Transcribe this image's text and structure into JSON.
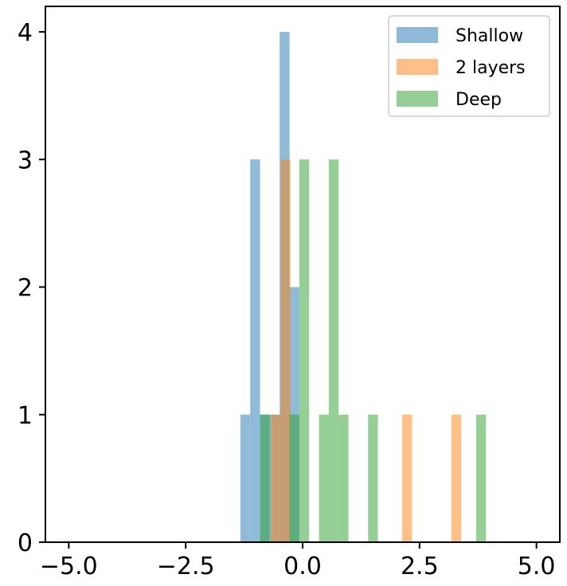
{
  "chart_data": {
    "type": "bar",
    "title": "",
    "xlabel": "",
    "ylabel": "",
    "xlim": [
      -5.5,
      5.5
    ],
    "ylim": [
      0,
      4.2
    ],
    "xticks": [
      {
        "value": -5.0,
        "label": "−5.0"
      },
      {
        "value": -2.5,
        "label": "−2.5"
      },
      {
        "value": 0.0,
        "label": "0.0"
      },
      {
        "value": 2.5,
        "label": "2.5"
      },
      {
        "value": 5.0,
        "label": "5.0"
      }
    ],
    "yticks": [
      {
        "value": 0,
        "label": "0"
      },
      {
        "value": 1,
        "label": "1"
      },
      {
        "value": 2,
        "label": "2"
      },
      {
        "value": 3,
        "label": "3"
      },
      {
        "value": 4,
        "label": "4"
      }
    ],
    "grid": false,
    "legend_position": "top-right",
    "series": [
      {
        "name": "Shallow",
        "color": "#1f77b4",
        "bins": [
          {
            "x0": -1.33,
            "x1": -1.12,
            "count": 1
          },
          {
            "x0": -1.12,
            "x1": -0.91,
            "count": 3
          },
          {
            "x0": -0.91,
            "x1": -0.7,
            "count": 1
          },
          {
            "x0": -0.7,
            "x1": -0.49,
            "count": 1
          },
          {
            "x0": -0.49,
            "x1": -0.28,
            "count": 4
          },
          {
            "x0": -0.28,
            "x1": -0.07,
            "count": 2
          }
        ]
      },
      {
        "name": "2 layers",
        "color": "#ff7f0e",
        "bins": [
          {
            "x0": -0.68,
            "x1": -0.47,
            "count": 1
          },
          {
            "x0": -0.47,
            "x1": -0.26,
            "count": 3
          },
          {
            "x0": 2.13,
            "x1": 2.34,
            "count": 1
          },
          {
            "x0": 3.18,
            "x1": 3.39,
            "count": 1
          }
        ]
      },
      {
        "name": "Deep",
        "color": "#2ca02c",
        "bins": [
          {
            "x0": -0.91,
            "x1": -0.7,
            "count": 1
          },
          {
            "x0": -0.28,
            "x1": -0.07,
            "count": 1
          },
          {
            "x0": -0.07,
            "x1": 0.14,
            "count": 3
          },
          {
            "x0": 0.35,
            "x1": 0.56,
            "count": 1
          },
          {
            "x0": 0.56,
            "x1": 0.77,
            "count": 3
          },
          {
            "x0": 0.77,
            "x1": 0.98,
            "count": 1
          },
          {
            "x0": 1.4,
            "x1": 1.61,
            "count": 1
          },
          {
            "x0": 3.71,
            "x1": 3.92,
            "count": 1
          }
        ]
      }
    ]
  }
}
